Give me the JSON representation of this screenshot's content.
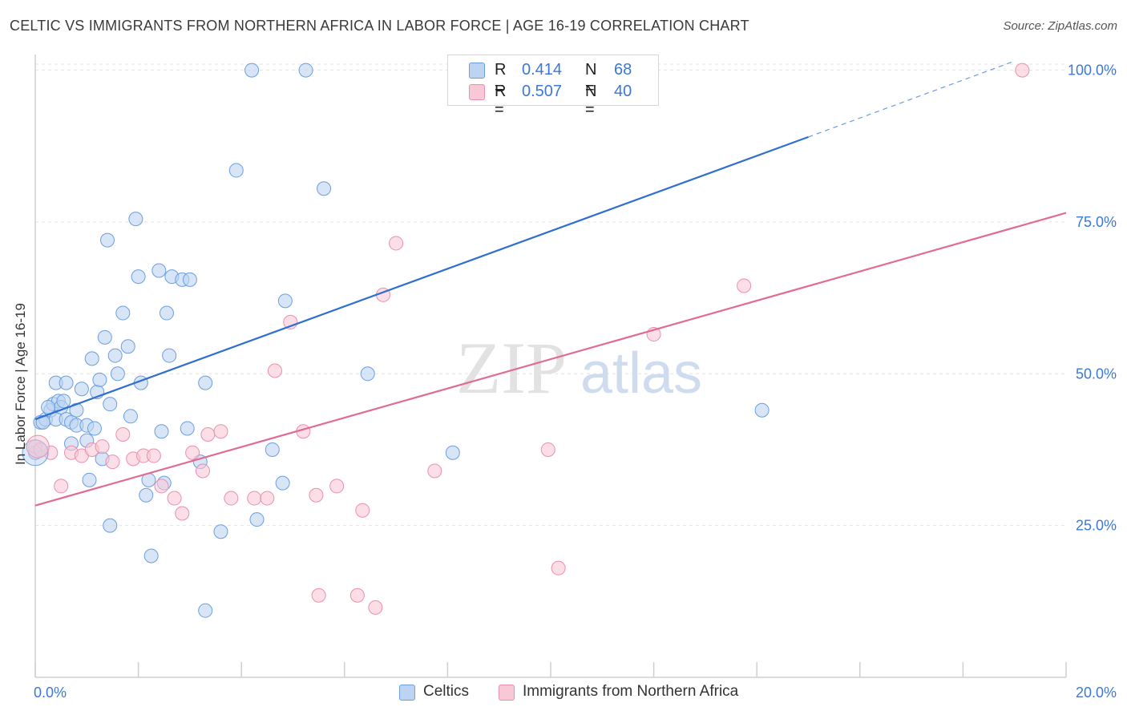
{
  "title": "CELTIC VS IMMIGRANTS FROM NORTHERN AFRICA IN LABOR FORCE | AGE 16-19 CORRELATION CHART",
  "source": "Source: ZipAtlas.com",
  "watermark": {
    "zip": "ZIP",
    "atlas": "atlas"
  },
  "legend": {
    "rows": [
      {
        "r_label": "R =",
        "r_value": "0.414",
        "n_label": "N =",
        "n_value": "68"
      },
      {
        "r_label": "R =",
        "r_value": "0.507",
        "n_label": "N =",
        "n_value": "40"
      }
    ]
  },
  "bottom_legend": {
    "series1": "Celtics",
    "series2": "Immigrants from Northern Africa"
  },
  "colors": {
    "celtics_fill": "#bcd3f2",
    "celtics_stroke": "#6b9ee0",
    "celtics_line": "#2f6fd0",
    "immig_fill": "#f8c8d6",
    "immig_stroke": "#ea8fad",
    "immig_line": "#e16b95",
    "axis_text": "#3b78d8",
    "grid": "#e3e3e3"
  },
  "chart_data": {
    "type": "scatter",
    "title": "CELTIC VS IMMIGRANTS FROM NORTHERN AFRICA IN LABOR FORCE | AGE 16-19 CORRELATION CHART",
    "xlabel": "",
    "ylabel": "In Labor Force | Age 16-19",
    "xlim": [
      0,
      20
    ],
    "ylim": [
      0,
      101
    ],
    "x_tick_labels": [
      "0.0%",
      "20.0%"
    ],
    "y_ticks": [
      25,
      50,
      75,
      100
    ],
    "y_tick_labels": [
      "25.0%",
      "50.0%",
      "75.0%",
      "100.0%"
    ],
    "grid": true,
    "legend_position": "top-center",
    "series": [
      {
        "name": "Celtics",
        "r": 0.414,
        "n": 68,
        "trend": {
          "x0": 0,
          "y0": 42.5,
          "x1": 15,
          "y1": 89,
          "dash_to_x": 19,
          "dash_to_y": 101.5
        },
        "points": [
          [
            0.0,
            37.0
          ],
          [
            0.1,
            42.0
          ],
          [
            0.2,
            42.5
          ],
          [
            0.3,
            44.0
          ],
          [
            0.35,
            45.0
          ],
          [
            0.4,
            42.5
          ],
          [
            0.4,
            48.5
          ],
          [
            0.45,
            45.5
          ],
          [
            0.5,
            44.5
          ],
          [
            0.6,
            42.5
          ],
          [
            0.6,
            48.5
          ],
          [
            0.7,
            42.0
          ],
          [
            0.7,
            38.5
          ],
          [
            0.8,
            41.5
          ],
          [
            0.8,
            44.0
          ],
          [
            0.9,
            47.5
          ],
          [
            1.0,
            41.5
          ],
          [
            1.0,
            39.0
          ],
          [
            1.05,
            32.5
          ],
          [
            1.1,
            52.5
          ],
          [
            1.15,
            41.0
          ],
          [
            1.2,
            47.0
          ],
          [
            1.25,
            49.0
          ],
          [
            1.3,
            36.0
          ],
          [
            1.35,
            56.0
          ],
          [
            1.4,
            72.0
          ],
          [
            1.45,
            45.0
          ],
          [
            1.45,
            25.0
          ],
          [
            1.55,
            53.0
          ],
          [
            1.6,
            50.0
          ],
          [
            1.7,
            60.0
          ],
          [
            1.8,
            54.5
          ],
          [
            1.85,
            43.0
          ],
          [
            1.95,
            75.5
          ],
          [
            2.0,
            66.0
          ],
          [
            2.05,
            48.5
          ],
          [
            2.15,
            30.0
          ],
          [
            2.2,
            32.5
          ],
          [
            2.25,
            20.0
          ],
          [
            2.4,
            67.0
          ],
          [
            2.45,
            40.5
          ],
          [
            2.5,
            32.0
          ],
          [
            2.55,
            60.0
          ],
          [
            2.6,
            53.0
          ],
          [
            2.65,
            66.0
          ],
          [
            2.85,
            65.5
          ],
          [
            2.95,
            41.0
          ],
          [
            3.0,
            65.5
          ],
          [
            3.2,
            35.5
          ],
          [
            3.3,
            48.5
          ],
          [
            3.3,
            11.0
          ],
          [
            3.6,
            24.0
          ],
          [
            3.9,
            83.5
          ],
          [
            4.2,
            100.0
          ],
          [
            4.3,
            26.0
          ],
          [
            4.6,
            37.5
          ],
          [
            4.8,
            32.0
          ],
          [
            4.85,
            62.0
          ],
          [
            5.25,
            100.0
          ],
          [
            5.6,
            80.5
          ],
          [
            6.45,
            50.0
          ],
          [
            8.1,
            37.0
          ],
          [
            8.55,
            100.0
          ],
          [
            9.5,
            100.0
          ],
          [
            14.1,
            44.0
          ],
          [
            0.15,
            42.0
          ],
          [
            0.25,
            44.5
          ],
          [
            0.55,
            45.5
          ]
        ]
      },
      {
        "name": "Immigrants from Northern Africa",
        "r": 0.507,
        "n": 40,
        "trend": {
          "x0": 0,
          "y0": 28.3,
          "x1": 20,
          "y1": 76.5
        },
        "points": [
          [
            0.0,
            38.0
          ],
          [
            0.3,
            37.0
          ],
          [
            0.5,
            31.5
          ],
          [
            0.7,
            37.0
          ],
          [
            0.9,
            36.5
          ],
          [
            1.1,
            37.5
          ],
          [
            1.3,
            38.0
          ],
          [
            1.5,
            35.5
          ],
          [
            1.7,
            40.0
          ],
          [
            1.9,
            36.0
          ],
          [
            2.1,
            36.5
          ],
          [
            2.3,
            36.5
          ],
          [
            2.45,
            31.5
          ],
          [
            2.7,
            29.5
          ],
          [
            2.85,
            27.0
          ],
          [
            3.05,
            37.0
          ],
          [
            3.25,
            34.0
          ],
          [
            3.35,
            40.0
          ],
          [
            3.6,
            40.5
          ],
          [
            3.8,
            29.5
          ],
          [
            4.25,
            29.5
          ],
          [
            4.5,
            29.5
          ],
          [
            4.65,
            50.5
          ],
          [
            4.95,
            58.5
          ],
          [
            5.2,
            40.5
          ],
          [
            5.45,
            30.0
          ],
          [
            5.5,
            13.5
          ],
          [
            5.85,
            31.5
          ],
          [
            6.25,
            13.5
          ],
          [
            6.35,
            27.5
          ],
          [
            6.6,
            11.5
          ],
          [
            6.75,
            63.0
          ],
          [
            7.0,
            71.5
          ],
          [
            7.75,
            34.0
          ],
          [
            9.95,
            37.5
          ],
          [
            10.15,
            18.0
          ],
          [
            12.0,
            56.5
          ],
          [
            13.75,
            64.5
          ],
          [
            19.15,
            100.0
          ],
          [
            0.1,
            37.5
          ]
        ]
      }
    ]
  }
}
